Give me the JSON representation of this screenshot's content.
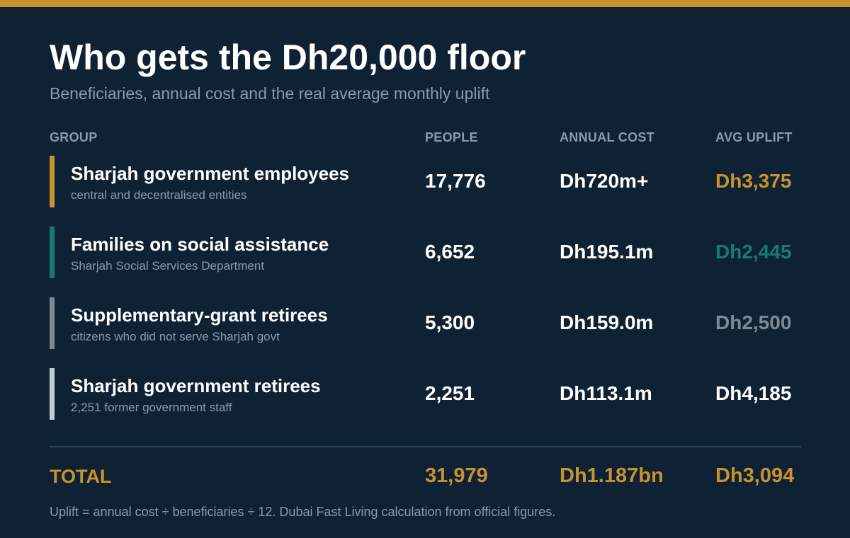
{
  "title": "Who gets the Dh20,000 floor",
  "subtitle": "Beneficiaries, annual cost and the real average monthly uplift",
  "colors": {
    "accent": "#c8922f",
    "background": "#0f2233",
    "muted": "#8a9aaa"
  },
  "chart_data": {
    "type": "table",
    "columns": [
      "GROUP",
      "PEOPLE",
      "ANNUAL COST",
      "AVG UPLIFT"
    ],
    "rows": [
      {
        "group": "Sharjah government employees",
        "sub": "central and decentralised entities",
        "people": "17,776",
        "cost": "Dh720m+",
        "uplift": "Dh3,375",
        "bar_color": "#c8922f",
        "uplift_color": "#c8922f"
      },
      {
        "group": "Families on social assistance",
        "sub": "Sharjah Social Services Department",
        "people": "6,652",
        "cost": "Dh195.1m",
        "uplift": "Dh2,445",
        "bar_color": "#1a7a6e",
        "uplift_color": "#1a7a6e"
      },
      {
        "group": "Supplementary-grant retirees",
        "sub": "citizens who did not serve Sharjah govt",
        "people": "5,300",
        "cost": "Dh159.0m",
        "uplift": "Dh2,500",
        "bar_color": "#7d8a96",
        "uplift_color": "#7d8a96"
      },
      {
        "group": "Sharjah government retirees",
        "sub": "2,251 former government staff",
        "people": "2,251",
        "cost": "Dh113.1m",
        "uplift": "Dh4,185",
        "bar_color": "#c3ccd4",
        "uplift_color": "#ffffff"
      }
    ],
    "total": {
      "label": "TOTAL",
      "people": "31,979",
      "cost": "Dh1.187bn",
      "uplift": "Dh3,094"
    }
  },
  "footnote": "Uplift = annual cost ÷ beneficiaries ÷ 12. Dubai Fast Living calculation from official figures."
}
